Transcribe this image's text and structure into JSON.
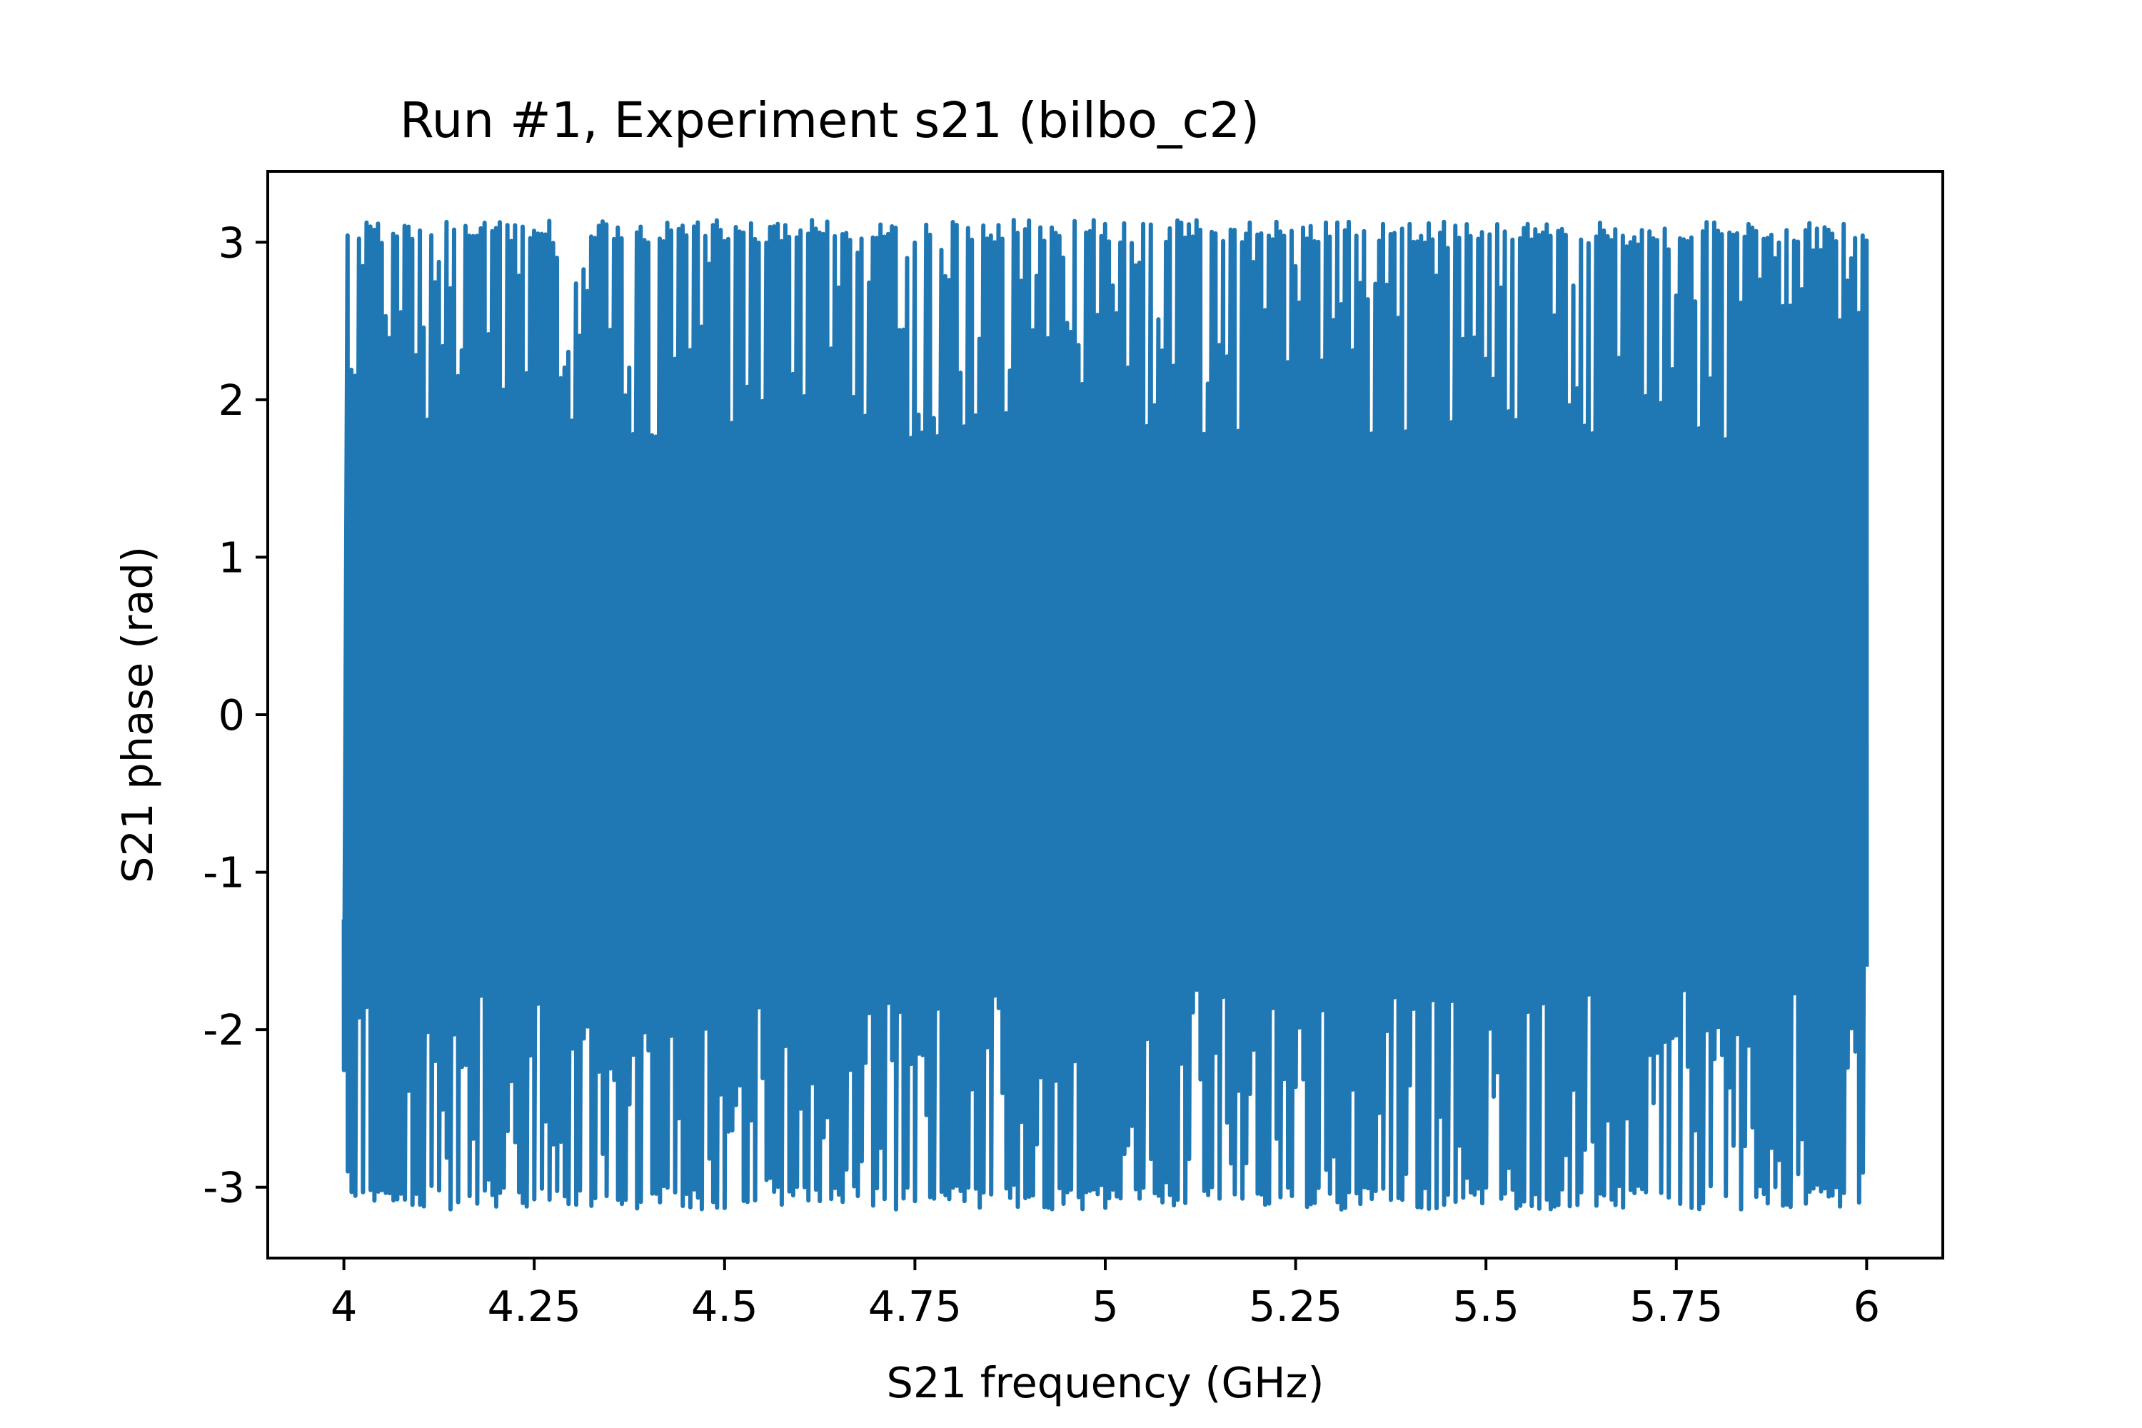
{
  "chart_data": {
    "type": "line",
    "title": "Run #1, Experiment s21 (bilbo_c2)",
    "xlabel": "S21 frequency (GHz)",
    "ylabel": "S21 phase (rad)",
    "xlim": [
      3.9,
      6.1
    ],
    "ylim": [
      -3.45,
      3.45
    ],
    "x_ticks": [
      4,
      4.25,
      4.5,
      4.75,
      5,
      5.25,
      5.5,
      5.75,
      6
    ],
    "x_tick_labels": [
      "4",
      "4.25",
      "4.5",
      "4.75",
      "5",
      "5.25",
      "5.5",
      "5.75",
      "6"
    ],
    "y_ticks": [
      -3,
      -2,
      -1,
      0,
      1,
      2,
      3
    ],
    "y_tick_labels": [
      "-3",
      "-2",
      "-1",
      "0",
      "1",
      "2",
      "3"
    ],
    "grid": false,
    "legend": "none",
    "color": "#1f77b4",
    "series": [
      {
        "x_start": 4.0,
        "x_end": 6.0,
        "num_points": 2001,
        "phase_wraps": 400,
        "y_min": -3.14159,
        "y_max": 3.14159,
        "y_first": -1.3,
        "y_last": -1.6
      }
    ]
  }
}
